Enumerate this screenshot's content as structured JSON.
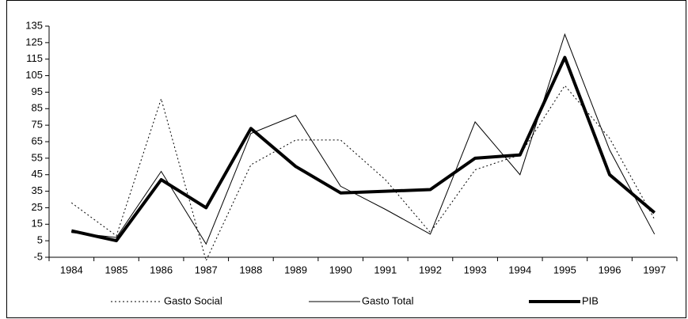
{
  "chart_data": {
    "type": "line",
    "categories": [
      "1984",
      "1985",
      "1986",
      "1987",
      "1988",
      "1989",
      "1990",
      "1991",
      "1992",
      "1993",
      "1994",
      "1995",
      "1996",
      "1997"
    ],
    "series": [
      {
        "name": "Gasto Social",
        "color": "#000000",
        "style": "dotted",
        "values": [
          28,
          8,
          91,
          -7,
          51,
          66,
          66,
          42,
          10,
          48,
          57,
          99,
          67,
          18
        ]
      },
      {
        "name": "Gasto Total",
        "color": "#000000",
        "style": "solid",
        "values": [
          10,
          7,
          47,
          3,
          70,
          81,
          38,
          24,
          9,
          77,
          45,
          130,
          60,
          9
        ]
      },
      {
        "name": "PIB",
        "color": "#000000",
        "style": "bold",
        "values": [
          11,
          5,
          42,
          25,
          73,
          50,
          34,
          35,
          36,
          55,
          57,
          116,
          45,
          22
        ]
      }
    ],
    "ylim": [
      -5,
      135
    ],
    "yticks": [
      -5,
      5,
      15,
      25,
      35,
      45,
      55,
      65,
      75,
      85,
      95,
      105,
      115,
      125,
      135
    ],
    "grid": false,
    "legend": "bottom"
  }
}
